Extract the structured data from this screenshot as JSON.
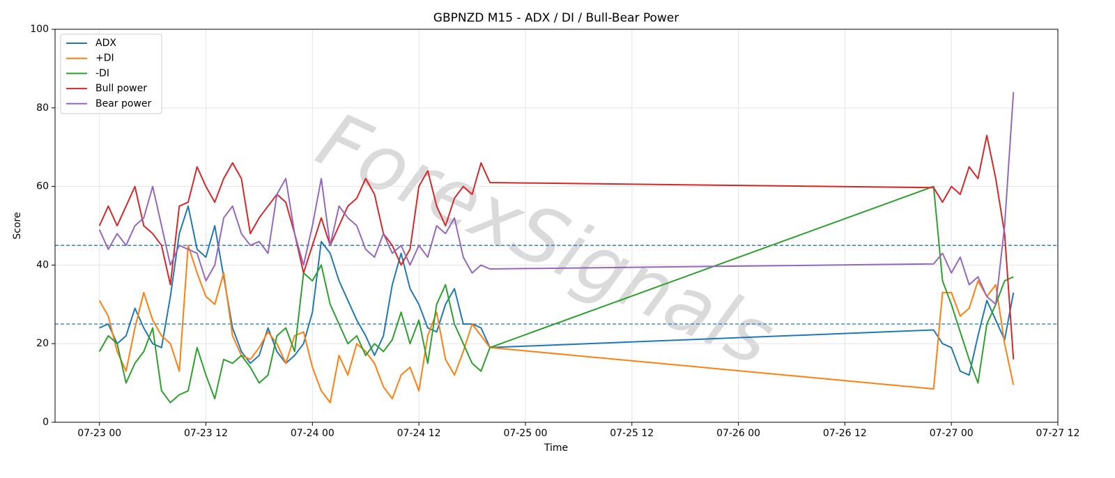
{
  "chart_data": {
    "type": "line",
    "title": "GBPNZD M15 - ADX / DI / Bull-Bear Power",
    "x_label": "Time",
    "y_label": "Score",
    "watermark": "ForexSignals",
    "x": [
      "07-23 00",
      "07-23 01",
      "07-23 02",
      "07-23 03",
      "07-23 04",
      "07-23 05",
      "07-23 06",
      "07-23 07",
      "07-23 08",
      "07-23 09",
      "07-23 10",
      "07-23 11",
      "07-23 12",
      "07-23 13",
      "07-23 14",
      "07-23 15",
      "07-23 16",
      "07-23 17",
      "07-23 18",
      "07-23 19",
      "07-23 20",
      "07-23 21",
      "07-23 22",
      "07-23 23",
      "07-24 00",
      "07-24 01",
      "07-24 02",
      "07-24 03",
      "07-24 04",
      "07-24 05",
      "07-24 06",
      "07-24 07",
      "07-24 08",
      "07-24 09",
      "07-24 10",
      "07-24 11",
      "07-24 12",
      "07-24 13",
      "07-24 14",
      "07-24 15",
      "07-24 16",
      "07-24 17",
      "07-24 18",
      "07-24 19",
      "07-24 20",
      "07-26 22",
      "07-26 23",
      "07-27 00",
      "07-27 01",
      "07-27 02",
      "07-27 03",
      "07-27 04",
      "07-27 05",
      "07-27 06",
      "07-27 07"
    ],
    "series": [
      {
        "name": "ADX",
        "color": "#1f77b4",
        "values": [
          24,
          25,
          20,
          22,
          29,
          24,
          20,
          19,
          32,
          48,
          55,
          44,
          42,
          50,
          37,
          24,
          18,
          15,
          17,
          24,
          18,
          15,
          17,
          20,
          28,
          46,
          43,
          36,
          31,
          26,
          22,
          17,
          22,
          35,
          43,
          34,
          30,
          24,
          23,
          30,
          34,
          25,
          25,
          24,
          19,
          23.5,
          20,
          19,
          13,
          12,
          22,
          31,
          26,
          21,
          33
        ]
      },
      {
        "name": "+DI",
        "color": "#ff7f0e",
        "values": [
          31,
          27,
          18,
          13,
          24,
          33,
          26,
          22,
          20,
          13,
          45,
          38,
          32,
          30,
          38,
          22,
          17,
          16,
          19,
          23,
          20,
          15,
          22,
          23,
          14,
          8,
          5,
          17,
          12,
          20,
          18,
          15,
          9,
          6,
          12,
          14,
          8,
          22,
          28,
          16,
          12,
          18,
          25,
          22,
          19,
          8.5,
          33,
          33,
          27,
          29,
          36,
          32,
          35,
          20,
          9.5
        ]
      },
      {
        "name": "-DI",
        "color": "#2ca02c",
        "values": [
          18,
          22,
          20,
          10,
          15,
          18,
          24,
          8,
          5,
          7,
          8,
          19,
          12,
          6,
          16,
          15,
          17,
          14,
          10,
          12,
          22,
          24,
          18,
          38,
          36,
          40,
          30,
          25,
          20,
          22,
          17,
          20,
          18,
          21,
          28,
          20,
          26,
          15,
          30,
          35,
          25,
          20,
          15,
          13,
          19,
          60,
          36,
          30,
          23,
          16,
          10,
          25,
          30,
          36,
          37
        ]
      },
      {
        "name": "Bull power",
        "color": "#d62728",
        "values": [
          50,
          55,
          50,
          55,
          60,
          50,
          48,
          45,
          35,
          55,
          56,
          65,
          60,
          56,
          62,
          66,
          62,
          48,
          52,
          55,
          58,
          56,
          48,
          38,
          45,
          52,
          45,
          50,
          55,
          57,
          62,
          58,
          48,
          45,
          40,
          44,
          60,
          64,
          55,
          50,
          57,
          60,
          58,
          66,
          61,
          59.7,
          56,
          60,
          58,
          65,
          62,
          73,
          62,
          48,
          16
        ]
      },
      {
        "name": "Bear power",
        "color": "#9467bd",
        "values": [
          49,
          44,
          48,
          45,
          50,
          52,
          60,
          50,
          40,
          45,
          44,
          43,
          36,
          40,
          52,
          55,
          48,
          45,
          46,
          43,
          58,
          62,
          48,
          40,
          50,
          62,
          45,
          55,
          52,
          50,
          44,
          42,
          48,
          43,
          45,
          40,
          45,
          42,
          50,
          48,
          52,
          42,
          38,
          40,
          39,
          40.3,
          43,
          38,
          42,
          35,
          37,
          32,
          30,
          50,
          84
        ]
      }
    ],
    "reference_lines": [
      45,
      25
    ],
    "reference_color": "#1f77b4",
    "xlim": [
      "07-22 19",
      "07-27 12"
    ],
    "xticks": [
      "07-23 00",
      "07-23 12",
      "07-24 00",
      "07-24 12",
      "07-25 00",
      "07-25 12",
      "07-26 00",
      "07-26 12",
      "07-27 00",
      "07-27 12"
    ],
    "ylim": [
      0,
      100
    ],
    "yticks": [
      0,
      20,
      40,
      60,
      80,
      100
    ],
    "grid": true,
    "legend": "upper left"
  }
}
